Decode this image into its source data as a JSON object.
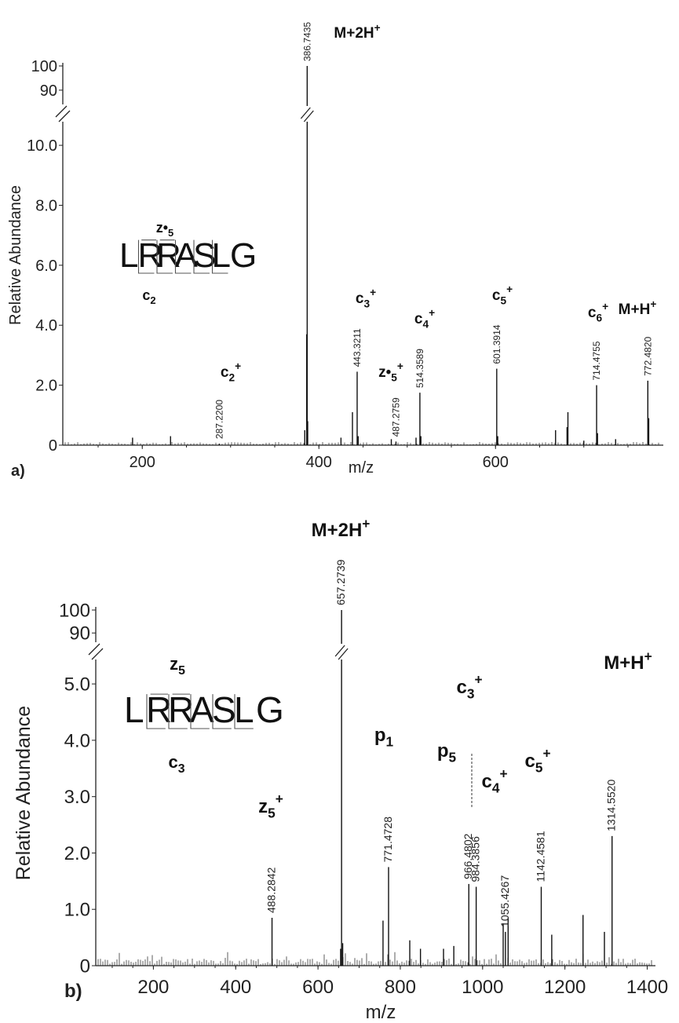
{
  "chart_data": [
    {
      "type": "bar",
      "panel_label": "a)",
      "xlabel": "m/z",
      "ylabel": "Relative Abundance",
      "x_ticks": [
        "200",
        "400",
        "600"
      ],
      "x_range": [
        110,
        790
      ],
      "y_ticks_lower": [
        "0",
        "2.0",
        "4.0",
        "6.0",
        "8.0",
        "10.0"
      ],
      "y_ticks_upper": [
        "90",
        "100"
      ],
      "y_lower_range": [
        0,
        10.5
      ],
      "y_upper_range": [
        88,
        100
      ],
      "peptide": "LRRASLG",
      "peptide_letters": [
        "L",
        "R",
        "R",
        "A",
        "S",
        "L",
        "G"
      ],
      "peptide_above_label": "z•5",
      "peptide_below_label": "c2",
      "peaks": [
        {
          "mz": 386.7435,
          "intensity": 100,
          "label": "386.7435",
          "ion": "M+2H⁺"
        },
        {
          "mz": 443.3211,
          "intensity": 2.45,
          "label": "443.3211",
          "ion": "c3⁺"
        },
        {
          "mz": 514.3589,
          "intensity": 1.75,
          "label": "514.3589",
          "ion": "c4⁺"
        },
        {
          "mz": 601.3914,
          "intensity": 2.55,
          "label": "601.3914",
          "ion": "c5⁺"
        },
        {
          "mz": 714.4755,
          "intensity": 2.0,
          "label": "714.4755",
          "ion": "c6⁺"
        },
        {
          "mz": 772.482,
          "intensity": 2.15,
          "label": "772.4820",
          "ion": "M+H⁺"
        },
        {
          "mz": 287.22,
          "intensity": 0.05,
          "label": "287.2200",
          "ion": "c2⁺"
        },
        {
          "mz": 487.2759,
          "intensity": 0.12,
          "label": "487.2759",
          "ion": "z•5⁺"
        }
      ],
      "minor_peaks": [
        {
          "mz": 189,
          "intensity": 0.25
        },
        {
          "mz": 232,
          "intensity": 0.3
        },
        {
          "mz": 384,
          "intensity": 0.5
        },
        {
          "mz": 386.2,
          "intensity": 3.7
        },
        {
          "mz": 387.3,
          "intensity": 0.8
        },
        {
          "mz": 425,
          "intensity": 0.25
        },
        {
          "mz": 438,
          "intensity": 1.1
        },
        {
          "mz": 444.5,
          "intensity": 0.3
        },
        {
          "mz": 482,
          "intensity": 0.2
        },
        {
          "mz": 510,
          "intensity": 0.25
        },
        {
          "mz": 515.5,
          "intensity": 0.3
        },
        {
          "mz": 602.5,
          "intensity": 0.3
        },
        {
          "mz": 668,
          "intensity": 0.5
        },
        {
          "mz": 682,
          "intensity": 1.1
        },
        {
          "mz": 681,
          "intensity": 0.6
        },
        {
          "mz": 700,
          "intensity": 0.15
        },
        {
          "mz": 715.5,
          "intensity": 0.4
        },
        {
          "mz": 736,
          "intensity": 0.2
        },
        {
          "mz": 773.5,
          "intensity": 0.9
        }
      ]
    },
    {
      "type": "bar",
      "panel_label": "b)",
      "xlabel": "m/z",
      "ylabel": "Relative Abundance",
      "x_ticks": [
        "200",
        "400",
        "600",
        "800",
        "1000",
        "1200",
        "1400"
      ],
      "x_range": [
        60,
        1420
      ],
      "y_ticks_lower": [
        "0",
        "1.0",
        "2.0",
        "3.0",
        "4.0",
        "5.0"
      ],
      "y_ticks_upper": [
        "90",
        "100"
      ],
      "y_lower_range": [
        0,
        5.35
      ],
      "y_upper_range": [
        87,
        100
      ],
      "peptide": "LRRASLG",
      "peptide_letters": [
        "L",
        "R",
        "R",
        "A",
        "S",
        "L",
        "G"
      ],
      "peptide_above_label": "z5",
      "peptide_below_label": "c3",
      "peaks": [
        {
          "mz": 657.2739,
          "intensity": 100,
          "label": "657.2739",
          "ion": "M+2H⁺"
        },
        {
          "mz": 488.2842,
          "intensity": 0.85,
          "label": "488.2842",
          "ion": "z5⁺"
        },
        {
          "mz": 771.4728,
          "intensity": 1.75,
          "label": "771.4728",
          "ion": "p1"
        },
        {
          "mz": 966.4802,
          "intensity": 1.45,
          "label": "966.4802",
          "ion": "p5"
        },
        {
          "mz": 984.3856,
          "intensity": 1.4,
          "label": "984.3856",
          "ion": "c3⁺"
        },
        {
          "mz": 1055.4267,
          "intensity": 0.6,
          "label": "1055.4267",
          "ion": "c4⁺"
        },
        {
          "mz": 1142.4581,
          "intensity": 1.4,
          "label": "1142.4581",
          "ion": "c5⁺"
        },
        {
          "mz": 1314.552,
          "intensity": 2.3,
          "label": "1314.5520",
          "ion": "M+H⁺"
        }
      ],
      "minor_peaks": [
        {
          "mz": 758,
          "intensity": 0.8
        },
        {
          "mz": 823,
          "intensity": 0.45
        },
        {
          "mz": 849,
          "intensity": 0.3
        },
        {
          "mz": 905,
          "intensity": 0.3
        },
        {
          "mz": 930,
          "intensity": 0.35
        },
        {
          "mz": 1050,
          "intensity": 0.75
        },
        {
          "mz": 1062,
          "intensity": 0.85
        },
        {
          "mz": 1168,
          "intensity": 0.55
        },
        {
          "mz": 1244,
          "intensity": 0.9
        },
        {
          "mz": 1296,
          "intensity": 0.6
        },
        {
          "mz": 655,
          "intensity": 0.3
        },
        {
          "mz": 660,
          "intensity": 0.4
        }
      ]
    }
  ]
}
